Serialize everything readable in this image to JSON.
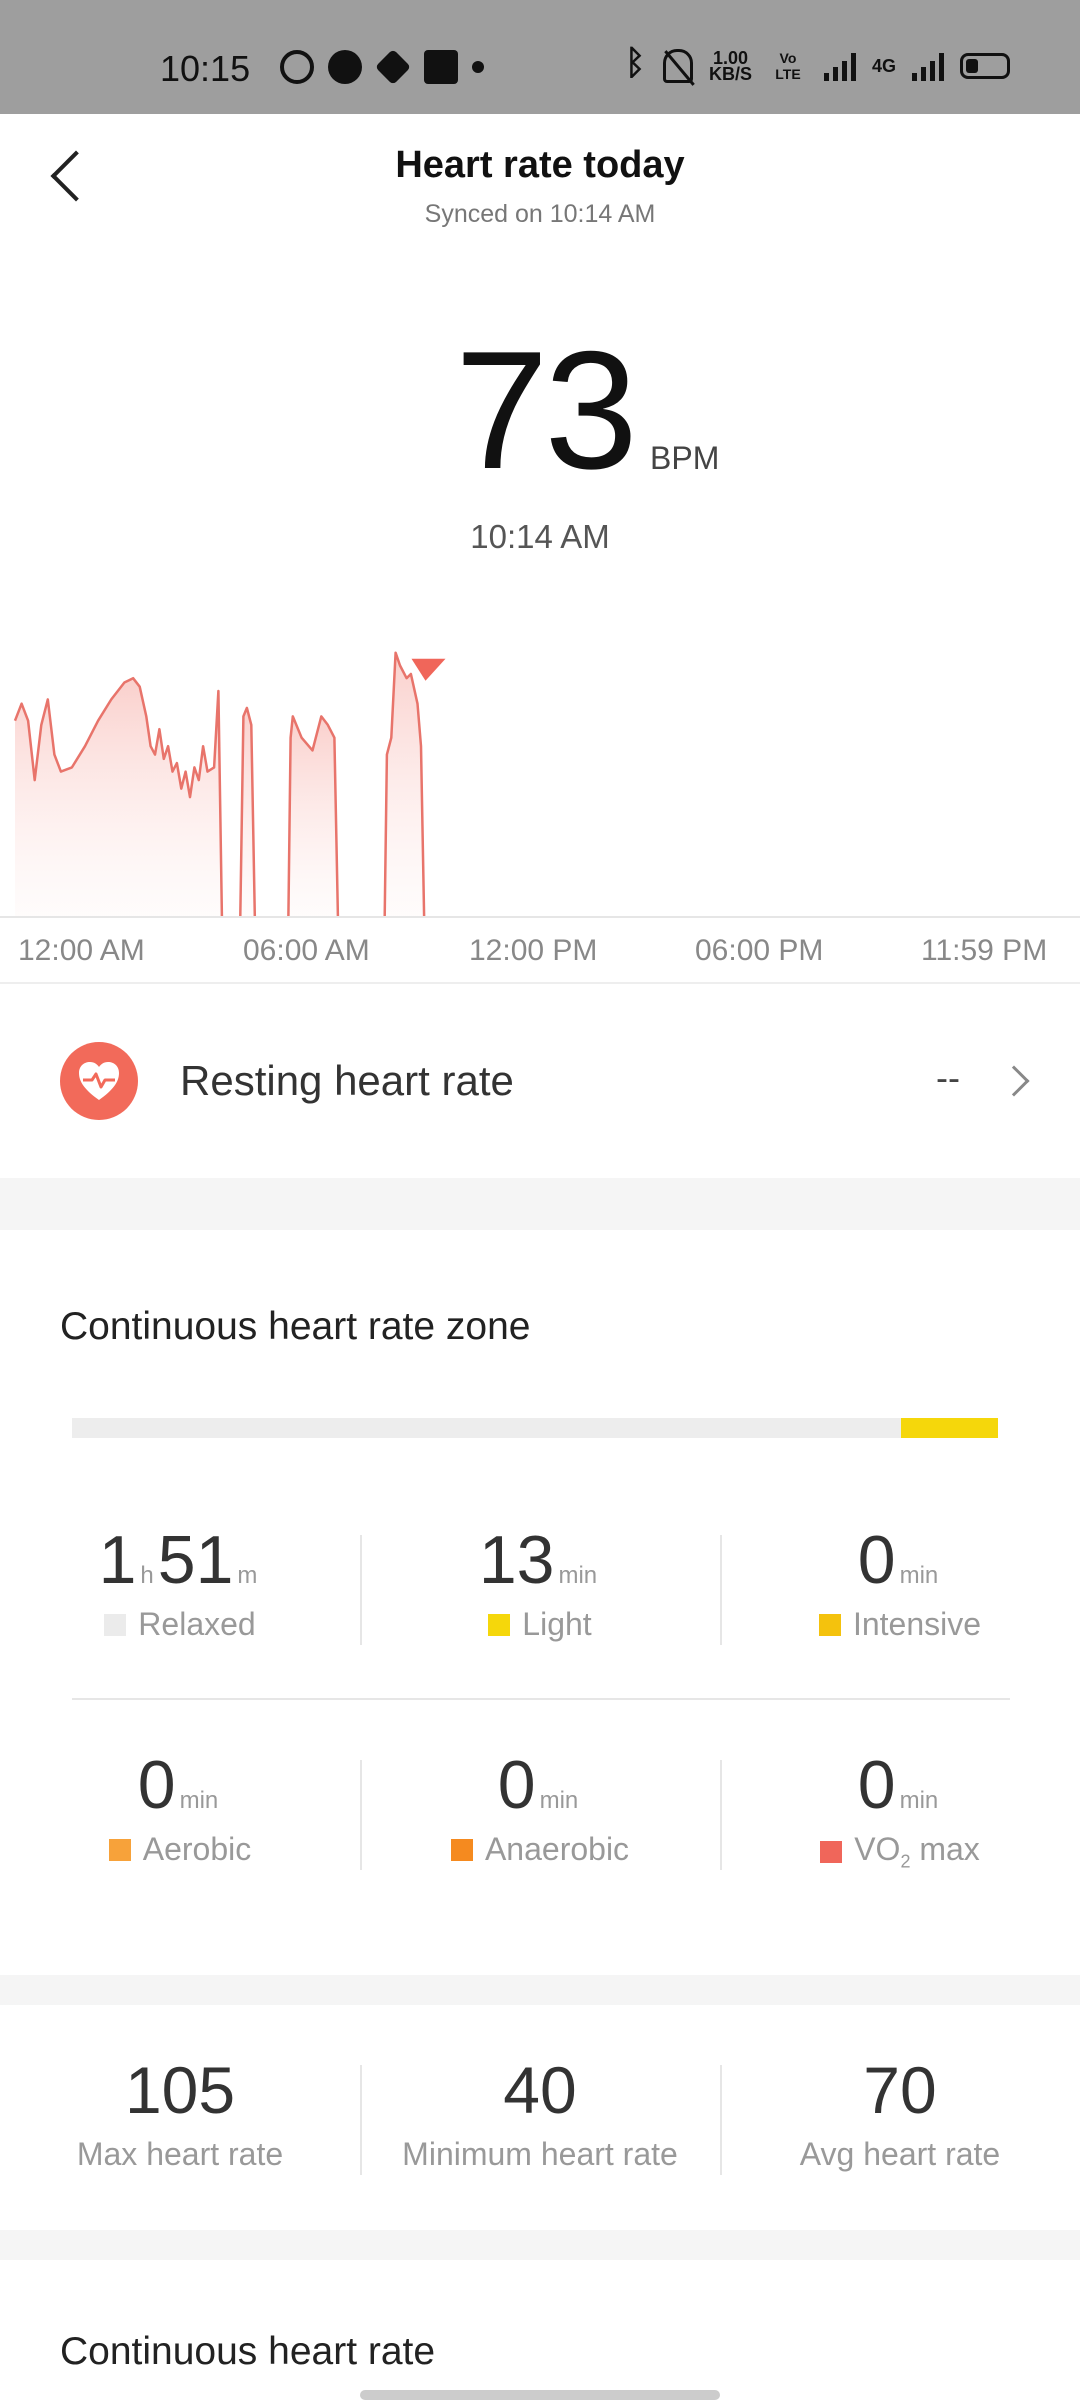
{
  "status_bar": {
    "time": "10:15",
    "speed_top": "1.00",
    "speed_bottom": "KB/S",
    "volte": "Vo LTE",
    "network": "4G"
  },
  "header": {
    "title": "Heart rate today",
    "subtitle": "Synced on 10:14 AM"
  },
  "current": {
    "value": "73",
    "unit": "BPM",
    "time": "10:14 AM"
  },
  "chart_data": {
    "type": "area",
    "x_ticks": [
      "12:00 AM",
      "06:00 AM",
      "12:00 PM",
      "06:00 PM",
      "11:59 PM"
    ],
    "x_hours_range": [
      0,
      24
    ],
    "y_range": [
      40,
      105
    ],
    "color": "#e8746b",
    "segments": [
      [
        [
          0.0,
          86
        ],
        [
          0.15,
          90
        ],
        [
          0.3,
          86
        ],
        [
          0.45,
          72
        ],
        [
          0.6,
          85
        ],
        [
          0.75,
          91
        ],
        [
          0.9,
          78
        ],
        [
          1.05,
          74
        ],
        [
          1.3,
          75
        ],
        [
          1.6,
          80
        ],
        [
          1.9,
          86
        ],
        [
          2.2,
          91
        ],
        [
          2.5,
          95
        ],
        [
          2.7,
          96
        ],
        [
          2.85,
          94
        ],
        [
          3.0,
          87
        ],
        [
          3.1,
          80
        ],
        [
          3.2,
          78
        ],
        [
          3.3,
          84
        ],
        [
          3.4,
          77
        ],
        [
          3.5,
          80
        ],
        [
          3.6,
          74
        ],
        [
          3.7,
          76
        ],
        [
          3.8,
          70
        ],
        [
          3.9,
          74
        ],
        [
          4.0,
          68
        ],
        [
          4.1,
          75
        ],
        [
          4.2,
          72
        ],
        [
          4.3,
          80
        ],
        [
          4.4,
          74
        ],
        [
          4.55,
          75
        ],
        [
          4.65,
          93
        ],
        [
          4.73,
          40
        ]
      ],
      [
        [
          5.15,
          40
        ],
        [
          5.22,
          87
        ],
        [
          5.3,
          89
        ],
        [
          5.4,
          85
        ],
        [
          5.48,
          40
        ]
      ],
      [
        [
          6.25,
          40
        ],
        [
          6.3,
          82
        ],
        [
          6.35,
          87
        ],
        [
          6.55,
          82
        ],
        [
          6.8,
          79
        ],
        [
          7.0,
          87
        ],
        [
          7.15,
          85
        ],
        [
          7.3,
          82
        ],
        [
          7.38,
          40
        ]
      ],
      [
        [
          8.45,
          40
        ],
        [
          8.5,
          78
        ],
        [
          8.6,
          82
        ],
        [
          8.7,
          102
        ],
        [
          8.8,
          99
        ],
        [
          8.95,
          96
        ],
        [
          9.05,
          97
        ],
        [
          9.2,
          90
        ],
        [
          9.28,
          80
        ],
        [
          9.35,
          40
        ]
      ]
    ],
    "marker": {
      "hour": 9.2,
      "value": 94
    }
  },
  "resting": {
    "label": "Resting heart rate",
    "value": "--"
  },
  "zones": {
    "title": "Continuous heart rate zone",
    "bar": {
      "total_minutes": 124,
      "light_minutes": 13,
      "light_color": "#f5d70b"
    },
    "cells": [
      {
        "value_h": "1",
        "unit_h": "h",
        "value_m": "51",
        "unit_m": "m",
        "label": "Relaxed",
        "color": "#ebebeb"
      },
      {
        "value": "13",
        "unit": "min",
        "label": "Light",
        "color": "#f5d70b"
      },
      {
        "value": "0",
        "unit": "min",
        "label": "Intensive",
        "color": "#f4c20d"
      },
      {
        "value": "0",
        "unit": "min",
        "label": "Aerobic",
        "color": "#f7a23a"
      },
      {
        "value": "0",
        "unit": "min",
        "label": "Anaerobic",
        "color": "#f58a1f"
      },
      {
        "value": "0",
        "unit": "min",
        "label_main": "VO",
        "label_sub": "2",
        "label_tail": " max",
        "color": "#f0665a"
      }
    ]
  },
  "stats": [
    {
      "value": "105",
      "label": "Max heart rate"
    },
    {
      "value": "40",
      "label": "Minimum heart rate"
    },
    {
      "value": "70",
      "label": "Avg heart rate"
    }
  ],
  "continuous": {
    "title": "Continuous heart rate"
  }
}
